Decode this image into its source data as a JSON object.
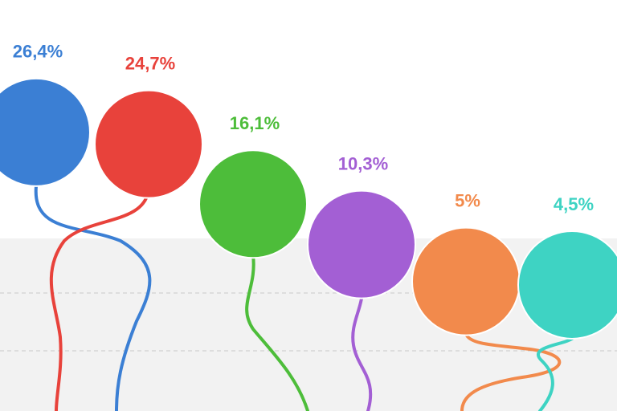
{
  "chart_data": {
    "type": "dot",
    "values": [
      26.4,
      24.7,
      16.1,
      10.3,
      5,
      4.5
    ],
    "value_labels": [
      "26,4%",
      "24,7%",
      "16,1%",
      "10,3%",
      "5%",
      "4,5%"
    ],
    "colors": [
      "#3b7fd4",
      "#e8423b",
      "#4dbd3a",
      "#a35fd4",
      "#f28a4c",
      "#3ed3c3"
    ]
  }
}
